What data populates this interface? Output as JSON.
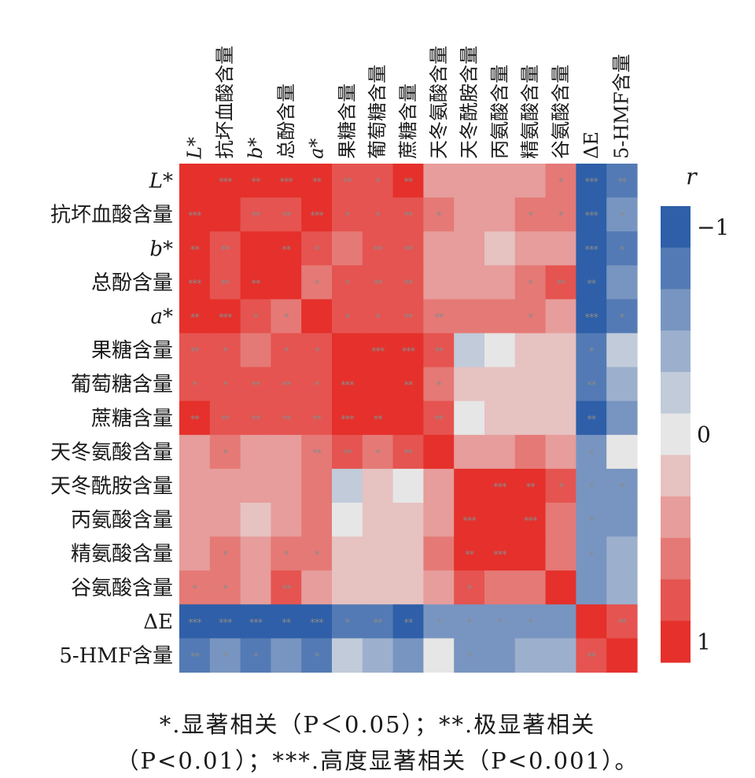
{
  "chart_data": {
    "type": "heatmap",
    "variables": [
      "L*",
      "抗坏血酸含量",
      "b*",
      "总酚含量",
      "a*",
      "果糖含量",
      "葡萄糖含量",
      "蔗糖含量",
      "天冬氨酸含量",
      "天冬酰胺含量",
      "丙氨酸含量",
      "精氨酸含量",
      "谷氨酸含量",
      "ΔE",
      "5-HMF含量"
    ],
    "matrix": [
      [
        1,
        0.95,
        0.9,
        0.95,
        0.9,
        0.85,
        0.8,
        0.9,
        0.4,
        0.3,
        0.3,
        0.45,
        0.6,
        -0.95,
        -0.8
      ],
      [
        0.95,
        1,
        0.85,
        0.85,
        0.95,
        0.75,
        0.75,
        0.85,
        0.6,
        0.4,
        0.35,
        0.55,
        0.6,
        -0.98,
        -0.7
      ],
      [
        0.9,
        0.85,
        1,
        0.9,
        0.75,
        0.5,
        0.8,
        0.8,
        0.4,
        0.3,
        0.2,
        0.3,
        0.4,
        -0.95,
        -0.75
      ],
      [
        0.95,
        0.85,
        0.9,
        1,
        0.5,
        0.75,
        0.8,
        0.75,
        0.3,
        0.3,
        0.3,
        0.55,
        0.75,
        -0.9,
        -0.6
      ],
      [
        0.9,
        0.95,
        0.75,
        0.5,
        1,
        0.7,
        0.7,
        0.8,
        0.65,
        0.5,
        0.55,
        0.6,
        0.3,
        -0.98,
        -0.75
      ],
      [
        0.85,
        0.75,
        0.5,
        0.75,
        0.7,
        1,
        0.95,
        0.95,
        0.75,
        -0.15,
        -0.1,
        0.1,
        0.1,
        -0.75,
        -0.25
      ],
      [
        0.8,
        0.75,
        0.8,
        0.8,
        0.7,
        0.95,
        1,
        0.9,
        0.65,
        0.1,
        0.2,
        0.25,
        0.15,
        -0.8,
        -0.45
      ],
      [
        0.9,
        0.85,
        0.8,
        0.75,
        0.8,
        0.95,
        0.9,
        1,
        0.75,
        0.05,
        0.1,
        0.2,
        0.25,
        -0.9,
        -0.55
      ],
      [
        0.4,
        0.6,
        0.4,
        0.3,
        0.65,
        0.75,
        0.65,
        0.75,
        1,
        0.35,
        0.45,
        0.55,
        0.35,
        -0.7,
        -0.1
      ],
      [
        0.3,
        0.4,
        0.3,
        0.3,
        0.5,
        -0.15,
        0.1,
        0.05,
        0.35,
        1,
        0.95,
        0.9,
        0.7,
        -0.7,
        -0.7
      ],
      [
        0.3,
        0.35,
        0.2,
        0.3,
        0.55,
        -0.1,
        0.2,
        0.1,
        0.45,
        0.95,
        1,
        0.95,
        0.5,
        -0.7,
        -0.55
      ],
      [
        0.45,
        0.55,
        0.3,
        0.55,
        0.6,
        0.1,
        0.25,
        0.2,
        0.55,
        0.9,
        0.95,
        1,
        0.5,
        -0.7,
        -0.4
      ],
      [
        0.6,
        0.6,
        0.4,
        0.75,
        0.3,
        0.1,
        0.15,
        0.25,
        0.35,
        0.7,
        0.5,
        0.5,
        1,
        -0.55,
        -0.35
      ],
      [
        -0.95,
        -0.98,
        -0.95,
        -0.9,
        -0.98,
        -0.75,
        -0.8,
        -0.9,
        -0.7,
        -0.7,
        -0.7,
        -0.7,
        -0.55,
        1,
        0.85
      ],
      [
        -0.8,
        -0.7,
        -0.75,
        -0.6,
        -0.75,
        -0.25,
        -0.45,
        -0.55,
        -0.1,
        -0.7,
        -0.55,
        -0.4,
        -0.35,
        0.85,
        1
      ]
    ],
    "significance": [
      [
        "",
        "***",
        "**",
        "***",
        "**",
        "**",
        "*",
        "**",
        "",
        "",
        "",
        "",
        "*",
        "***",
        "**"
      ],
      [
        "***",
        "",
        "**",
        "**",
        "***",
        "*",
        "*",
        "**",
        "*",
        "",
        "",
        "*",
        "*",
        "***",
        "*"
      ],
      [
        "**",
        "**",
        "",
        "**",
        "*",
        "",
        "**",
        "**",
        "",
        "",
        "",
        "",
        "",
        "***",
        "*"
      ],
      [
        "***",
        "**",
        "**",
        "",
        "*",
        "*",
        "**",
        "**",
        "",
        "",
        "",
        "*",
        "**",
        "**",
        ""
      ],
      [
        "**",
        "***",
        "*",
        "*",
        "",
        "*",
        "*",
        "**",
        "**",
        "",
        "",
        "*",
        "",
        "***",
        "*"
      ],
      [
        "**",
        "*",
        "",
        "*",
        "*",
        "",
        "***",
        "***",
        "**",
        "",
        "",
        "",
        "",
        "*",
        ""
      ],
      [
        "*",
        "*",
        "**",
        "**",
        "*",
        "***",
        "",
        "**",
        "*",
        "",
        "",
        "",
        "",
        "**",
        ""
      ],
      [
        "**",
        "**",
        "**",
        "**",
        "**",
        "***",
        "**",
        "",
        "**",
        "",
        "",
        "",
        "",
        "**",
        ""
      ],
      [
        "",
        "*",
        "",
        "",
        "**",
        "**",
        "*",
        "**",
        "",
        "",
        "",
        "",
        "",
        "*",
        ""
      ],
      [
        "",
        "",
        "",
        "",
        "",
        "",
        "",
        "",
        "",
        "",
        "***",
        "**",
        "*",
        "*",
        "*"
      ],
      [
        "",
        "",
        "",
        "",
        "",
        "",
        "",
        "",
        "",
        "***",
        "",
        "***",
        "",
        "*",
        ""
      ],
      [
        "",
        "*",
        "",
        "*",
        "*",
        "",
        "",
        "",
        "",
        "**",
        "***",
        "",
        "",
        "*",
        ""
      ],
      [
        "*",
        "*",
        "",
        "**",
        "",
        "",
        "",
        "",
        "",
        "*",
        "",
        "",
        "",
        "",
        ""
      ],
      [
        "***",
        "***",
        "***",
        "**",
        "***",
        "*",
        "**",
        "**",
        "*",
        "*",
        "*",
        "*",
        "",
        "",
        "**"
      ],
      [
        "**",
        "*",
        "*",
        "",
        "*",
        "",
        "",
        "",
        "",
        "*",
        "",
        "",
        "",
        "**",
        ""
      ]
    ],
    "colorbar": {
      "label": "r",
      "tick_labels": [
        "−1",
        "0",
        "1"
      ],
      "tick_values": [
        -1,
        0,
        1
      ],
      "levels": 11,
      "low_color": "#2e5fa8",
      "mid_color": "#e6e6e6",
      "high_color": "#e5302b"
    }
  },
  "footnote": {
    "line1": "*.显著相关（P＜0.05）；**.极显著相关",
    "line2": "（P<0.01）；***.高度显著相关（P<0.001）。"
  }
}
